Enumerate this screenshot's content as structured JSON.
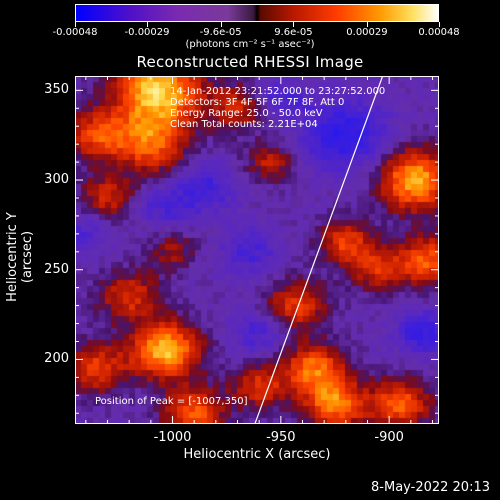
{
  "colorbar": {
    "tick_labels": [
      "-0.00048",
      "-0.00029",
      "-9.6e-05",
      "9.6e-05",
      "0.00029",
      "0.00048"
    ],
    "unit_label": "(photons cm⁻² s⁻¹ asec⁻²)"
  },
  "chart_data": {
    "type": "heatmap",
    "title": "Reconstructed RHESSI Image",
    "xlabel": "Heliocentric X (arcsec)",
    "ylabel": "Heliocentric Y (arcsec)",
    "xlim": [
      -1045,
      -877
    ],
    "ylim": [
      164,
      358
    ],
    "x_ticks": [
      "-1000",
      "-950",
      "-900"
    ],
    "y_ticks": [
      "350",
      "300",
      "250",
      "200"
    ],
    "x_tick_values": [
      -1000,
      -950,
      -900
    ],
    "y_tick_values": [
      350,
      300,
      250,
      200
    ],
    "colorbar_range": [
      -0.00048,
      0.00048
    ],
    "limb_line": {
      "x": [
        -962,
        -903
      ],
      "y": [
        164,
        358
      ]
    },
    "annotations": [
      "14-Jan-2012 23:21:52.000 to 23:27:52.000",
      "Detectors: 3F 4F 5F 6F 7F 8F, Att 0",
      "Energy Range: 25.0 - 50.0 keV",
      "Clean     Total counts: 2.21E+04"
    ],
    "peak_label": "Position of Peak = [-1007,350]",
    "peak_position": [
      -1007,
      350
    ]
  },
  "footer": {
    "date": "8-May-2022 20:13"
  }
}
